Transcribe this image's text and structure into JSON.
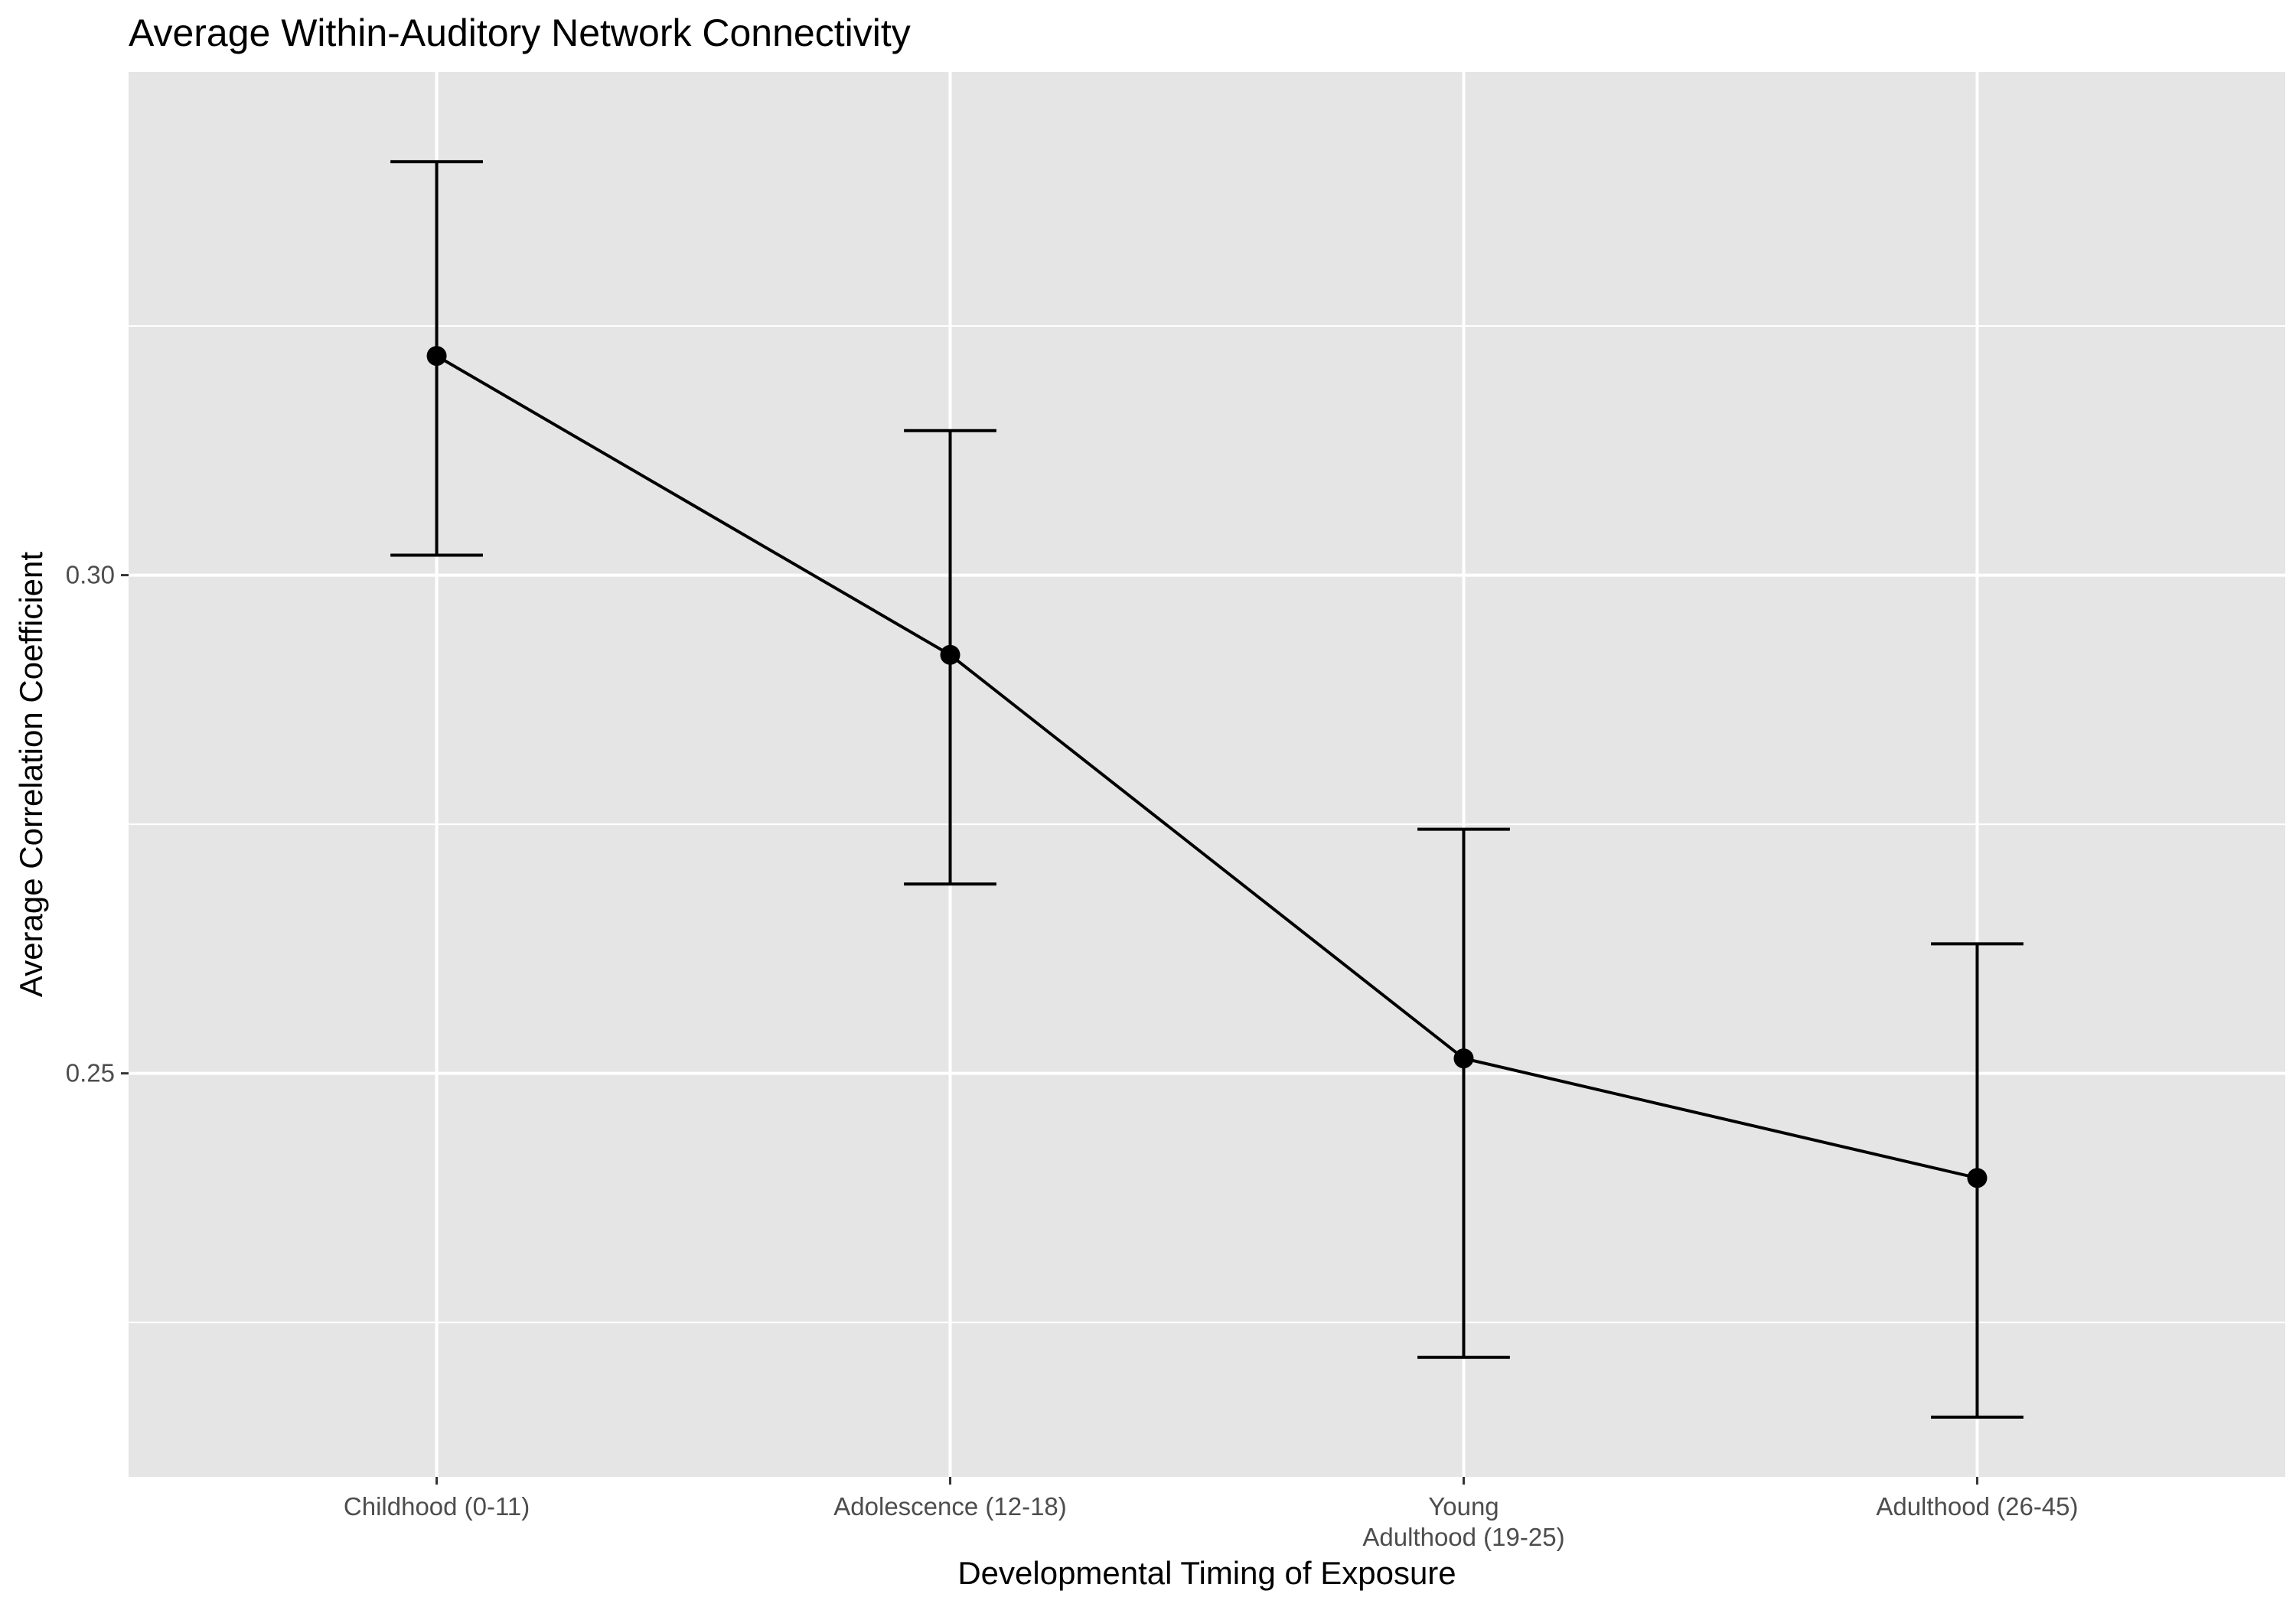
{
  "chart_data": {
    "type": "line",
    "title": "Average Within-Auditory Network Connectivity",
    "xlabel": "Developmental Timing of Exposure",
    "ylabel": "Average Correlation Coefficient",
    "categories": [
      [
        "Childhood (0-11)"
      ],
      [
        "Adolescence (12-18)"
      ],
      [
        "Young",
        "Adulthood (19-25)"
      ],
      [
        "Adulthood (26-45)"
      ]
    ],
    "series": [
      {
        "values": [
          0.322,
          0.292,
          0.2515,
          0.2395
        ],
        "error_low": [
          0.302,
          0.269,
          0.2215,
          0.2155
        ],
        "error_high": [
          0.3415,
          0.3145,
          0.2745,
          0.263
        ]
      }
    ],
    "yticks": [
      0.25,
      0.3
    ],
    "ytick_labels": [
      "0.25",
      "0.30"
    ],
    "ylim": [
      0.2095,
      0.3505
    ],
    "grid": true,
    "legend": "none",
    "colors": {
      "panel": "#e5e5e5",
      "grid": "#ffffff",
      "line": "#000000",
      "tick_text": "#4d4d4d"
    }
  }
}
